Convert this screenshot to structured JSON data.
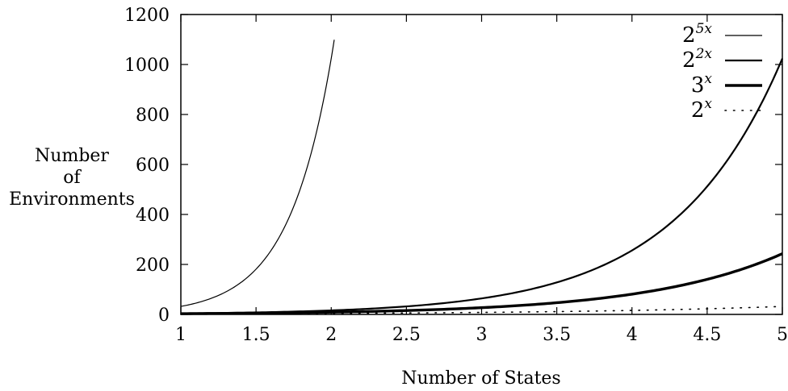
{
  "chart_data": {
    "type": "line",
    "title": "",
    "xlabel": "Number of States",
    "ylabel_lines": [
      "Number",
      "of",
      "Environments"
    ],
    "xlim": [
      1,
      5
    ],
    "ylim": [
      0,
      1200
    ],
    "xticks": [
      1,
      1.5,
      2,
      2.5,
      3,
      3.5,
      4,
      4.5,
      5
    ],
    "xtick_labels": [
      "1",
      "1.5",
      "2",
      "2.5",
      "3",
      "3.5",
      "4",
      "4.5",
      "5"
    ],
    "yticks": [
      0,
      200,
      400,
      600,
      800,
      1000,
      1200
    ],
    "ytick_labels": [
      "0",
      "200",
      "400",
      "600",
      "800",
      "1000",
      "1200"
    ],
    "grid": false,
    "legend_position": "top-right",
    "series": [
      {
        "label_base": "2",
        "label_exp": "5x",
        "style": "thin",
        "x": [
          1,
          1.25,
          1.5,
          1.75,
          2,
          2.02
        ],
        "y": [
          32,
          76,
          181,
          431,
          1024,
          1099
        ]
      },
      {
        "label_base": "2",
        "label_exp": "2x",
        "style": "medium",
        "x": [
          1,
          1.5,
          2,
          2.5,
          3,
          3.5,
          4,
          4.5,
          5
        ],
        "y": [
          4,
          8,
          16,
          32,
          64,
          128,
          256,
          512,
          1024
        ]
      },
      {
        "label_base": "3",
        "label_exp": "x",
        "style": "thick",
        "x": [
          1,
          1.5,
          2,
          2.5,
          3,
          3.5,
          4,
          4.5,
          5
        ],
        "y": [
          3,
          5.2,
          9,
          15.6,
          27,
          46.8,
          81,
          140.3,
          243
        ]
      },
      {
        "label_base": "2",
        "label_exp": "x",
        "style": "dotted",
        "x": [
          1,
          1.5,
          2,
          2.5,
          3,
          3.5,
          4,
          4.5,
          5
        ],
        "y": [
          2,
          2.8,
          4,
          5.7,
          8,
          11.3,
          16,
          22.6,
          32
        ]
      }
    ]
  }
}
